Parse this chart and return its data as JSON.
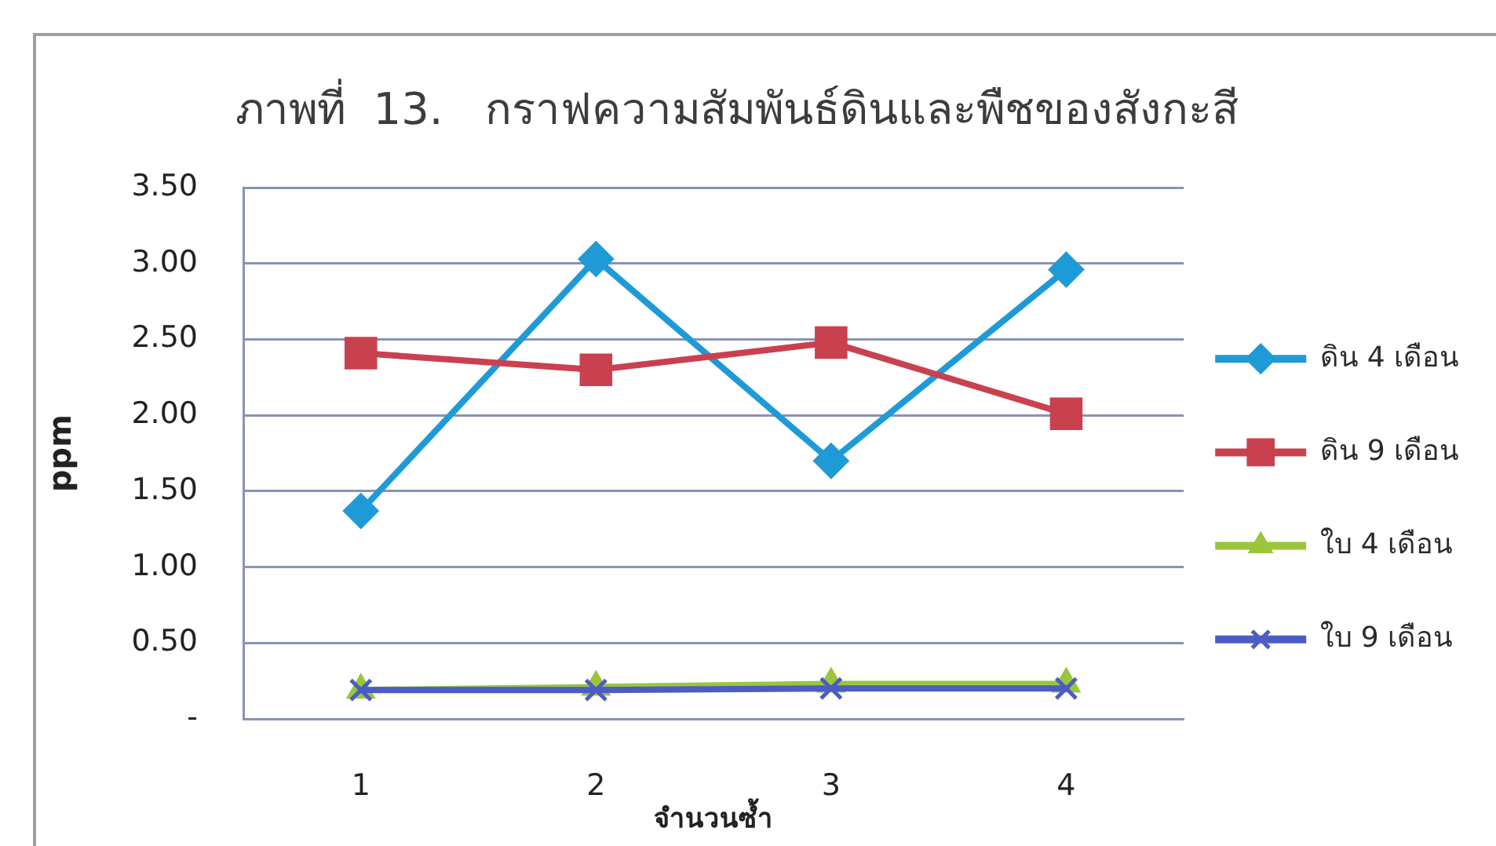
{
  "chart_data": {
    "type": "line",
    "title": "ภาพที่  13.   กราฟความสัมพันธ์ดินและพืชของสังกะสี",
    "xlabel": "จำนวนซ้ำ",
    "ylabel": "ppm",
    "categories": [
      "1",
      "2",
      "3",
      "4"
    ],
    "series": [
      {
        "name": "ดิน 4 เดือน",
        "color": "#1e9bd7",
        "marker": "diamond",
        "values": [
          1.37,
          3.03,
          1.7,
          2.96
        ]
      },
      {
        "name": "ดิน 9 เดือน",
        "color": "#c9414f",
        "marker": "square",
        "values": [
          2.41,
          2.3,
          2.48,
          2.01
        ]
      },
      {
        "name": "ใบ 4 เดือน",
        "color": "#9bc53d",
        "marker": "triangle",
        "values": [
          0.19,
          0.21,
          0.23,
          0.23
        ]
      },
      {
        "name": "ใบ 9 เดือน",
        "color": "#4b5cc4",
        "marker": "cross",
        "values": [
          0.19,
          0.19,
          0.2,
          0.2
        ]
      }
    ],
    "ylim": [
      0,
      3.5
    ],
    "yticks": [
      {
        "value": 0,
        "label": "-"
      },
      {
        "value": 0.5,
        "label": "0.50"
      },
      {
        "value": 1,
        "label": "1.00"
      },
      {
        "value": 1.5,
        "label": "1.50"
      },
      {
        "value": 2,
        "label": "2.00"
      },
      {
        "value": 2.5,
        "label": "2.50"
      },
      {
        "value": 3,
        "label": "3.00"
      },
      {
        "value": 3.5,
        "label": "3.50"
      }
    ],
    "grid": "y",
    "legend": "right"
  }
}
